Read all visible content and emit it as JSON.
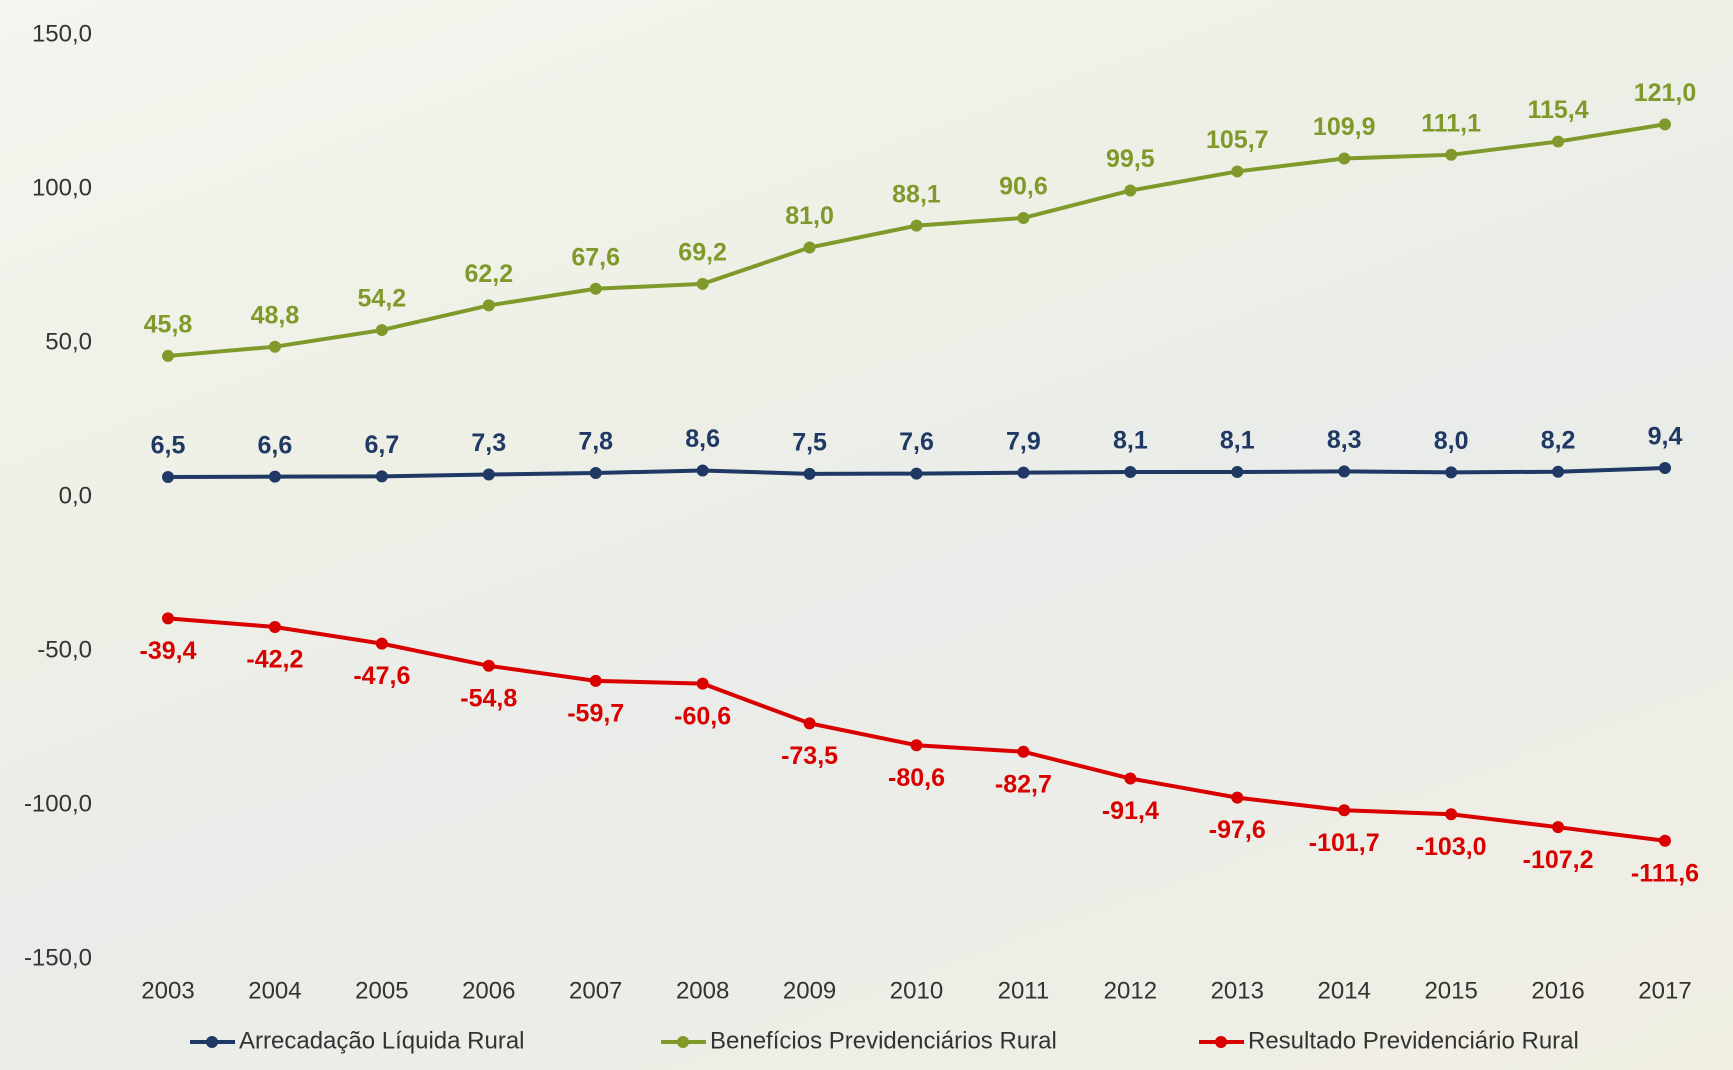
{
  "chart_data": {
    "type": "line",
    "categories": [
      "2003",
      "2004",
      "2005",
      "2006",
      "2007",
      "2008",
      "2009",
      "2010",
      "2011",
      "2012",
      "2013",
      "2014",
      "2015",
      "2016",
      "2017"
    ],
    "ylim": [
      -150,
      150
    ],
    "yticks": [
      {
        "value": -150,
        "label": "-150,0"
      },
      {
        "value": -100,
        "label": "-100,0"
      },
      {
        "value": -50,
        "label": "-50,0"
      },
      {
        "value": 0,
        "label": "0,0"
      },
      {
        "value": 50,
        "label": "50,0"
      },
      {
        "value": 100,
        "label": "100,0"
      },
      {
        "value": 150,
        "label": "150,0"
      }
    ],
    "grid": false,
    "legend": "bottom",
    "series": [
      {
        "name": "Arrecadação Líquida Rural",
        "color": "#1f3864",
        "values": [
          6.5,
          6.6,
          6.7,
          7.3,
          7.8,
          8.6,
          7.5,
          7.6,
          7.9,
          8.1,
          8.1,
          8.3,
          8.0,
          8.2,
          9.4
        ],
        "value_labels": [
          "6,5",
          "6,6",
          "6,7",
          "7,3",
          "7,8",
          "8,6",
          "7,5",
          "7,6",
          "7,9",
          "8,1",
          "8,1",
          "8,3",
          "8,0",
          "8,2",
          "9,4"
        ]
      },
      {
        "name": "Benefícios Previdenciários Rural",
        "color": "#7f9a2a",
        "values": [
          45.8,
          48.8,
          54.2,
          62.2,
          67.6,
          69.2,
          81.0,
          88.1,
          90.6,
          99.5,
          105.7,
          109.9,
          111.1,
          115.4,
          121.0
        ],
        "value_labels": [
          "45,8",
          "48,8",
          "54,2",
          "62,2",
          "67,6",
          "69,2",
          "81,0",
          "88,1",
          "90,6",
          "99,5",
          "105,7",
          "109,9",
          "111,1",
          "115,4",
          "121,0"
        ]
      },
      {
        "name": "Resultado Previdenciário Rural",
        "color": "#d90000",
        "values": [
          -39.4,
          -42.2,
          -47.6,
          -54.8,
          -59.7,
          -60.6,
          -73.5,
          -80.6,
          -82.7,
          -91.4,
          -97.6,
          -101.7,
          -103.0,
          -107.2,
          -111.6
        ],
        "value_labels": [
          "-39,4",
          "-42,2",
          "-47,6",
          "-54,8",
          "-59,7",
          "-60,6",
          "-73,5",
          "-80,6",
          "-82,7",
          "-91,4",
          "-97,6",
          "-101,7",
          "-103,0",
          "-107,2",
          "-111,6"
        ]
      }
    ]
  }
}
